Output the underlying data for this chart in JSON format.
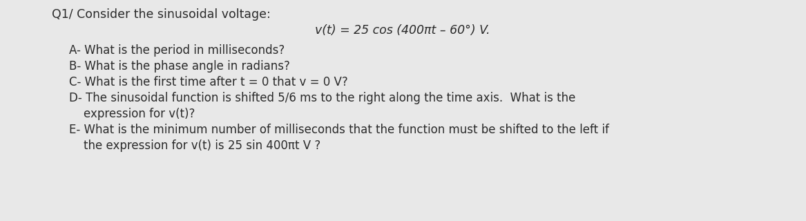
{
  "bg_color": "#e8e8e8",
  "title_line": "Q1/ Consider the sinusoidal voltage:",
  "formula_line": "v(t) = 25 cos (400πt – 60°) V.",
  "q_a": "A- What is the period in milliseconds?",
  "q_b": "B- What is the phase angle in radians?",
  "q_c": "C- What is the first time after t = 0 that v = 0 V?",
  "q_d1": "D- The sinusoidal function is shifted 5/6 ms to the right along the time axis.  What is the",
  "q_d2": "    expression for v(t)?",
  "q_e1": "E- What is the minimum number of milliseconds that the function must be shifted to the left if",
  "q_e2": "    the expression for v(t) is 25 sin 400πt V ?",
  "text_color": "#2a2a2a",
  "title_fontsize": 12.5,
  "formula_fontsize": 12.5,
  "body_fontsize": 12.0
}
